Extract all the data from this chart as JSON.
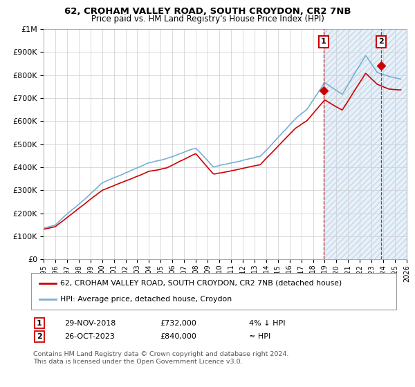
{
  "title1": "62, CROHAM VALLEY ROAD, SOUTH CROYDON, CR2 7NB",
  "title2": "Price paid vs. HM Land Registry's House Price Index (HPI)",
  "legend1": "62, CROHAM VALLEY ROAD, SOUTH CROYDON, CR2 7NB (detached house)",
  "legend2": "HPI: Average price, detached house, Croydon",
  "annotation1_date": "29-NOV-2018",
  "annotation1_price": "£732,000",
  "annotation1_hpi": "4% ↓ HPI",
  "annotation2_date": "26-OCT-2023",
  "annotation2_price": "£840,000",
  "annotation2_hpi": "≈ HPI",
  "footer": "Contains HM Land Registry data © Crown copyright and database right 2024.\nThis data is licensed under the Open Government Licence v3.0.",
  "red_color": "#cc0000",
  "blue_color": "#7aafd4",
  "light_blue_bg": "#e8f0f8",
  "point1_year": 2018.91,
  "point1_value": 732000,
  "point2_year": 2023.82,
  "point2_value": 840000,
  "xmin": 1995,
  "xmax": 2026,
  "ymin": 0,
  "ymax": 1000000
}
